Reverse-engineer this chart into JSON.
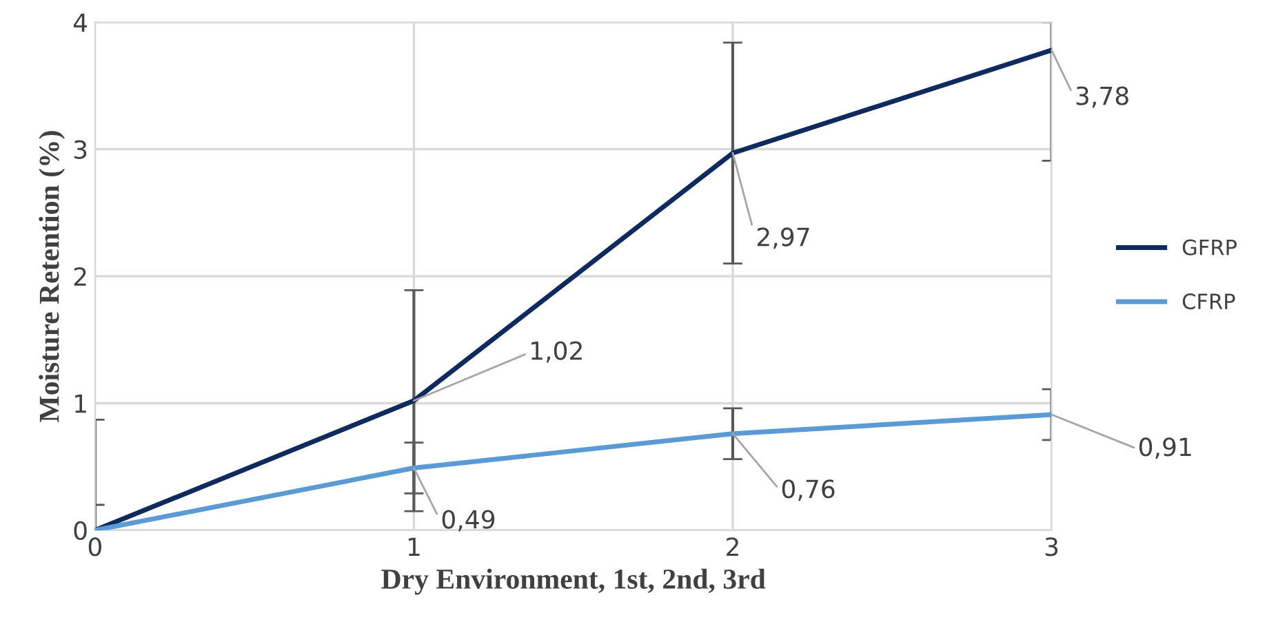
{
  "chart_data": {
    "type": "line",
    "xlabel": "Dry Environment, 1st, 2nd, 3rd",
    "ylabel": "Moisture Retention (%)",
    "x": [
      0,
      1,
      2,
      3
    ],
    "xlim": [
      0,
      3
    ],
    "xticks": [
      0,
      1,
      2,
      3
    ],
    "ylim": [
      0,
      4
    ],
    "yticks": [
      0,
      1,
      2,
      3,
      4
    ],
    "grid": true,
    "legend": "right",
    "marker": "none",
    "series": [
      {
        "name": "GFRP",
        "color": "#0e2a5f",
        "values": [
          0,
          1.02,
          2.97,
          3.78
        ],
        "errors": [
          [
            0,
            0.87
          ],
          0.87,
          0.87,
          [
            2.91,
            4
          ]
        ],
        "value_labels": [
          null,
          "1,02",
          "2,97",
          "3,78"
        ]
      },
      {
        "name": "CFRP",
        "color": "#5b9bd5",
        "values": [
          0,
          0.49,
          0.76,
          0.91
        ],
        "errors": [
          [
            0,
            0.2
          ],
          0.2,
          0.2,
          0.2
        ],
        "value_labels": [
          null,
          "0,49",
          "0,76",
          "0,91"
        ]
      }
    ]
  }
}
